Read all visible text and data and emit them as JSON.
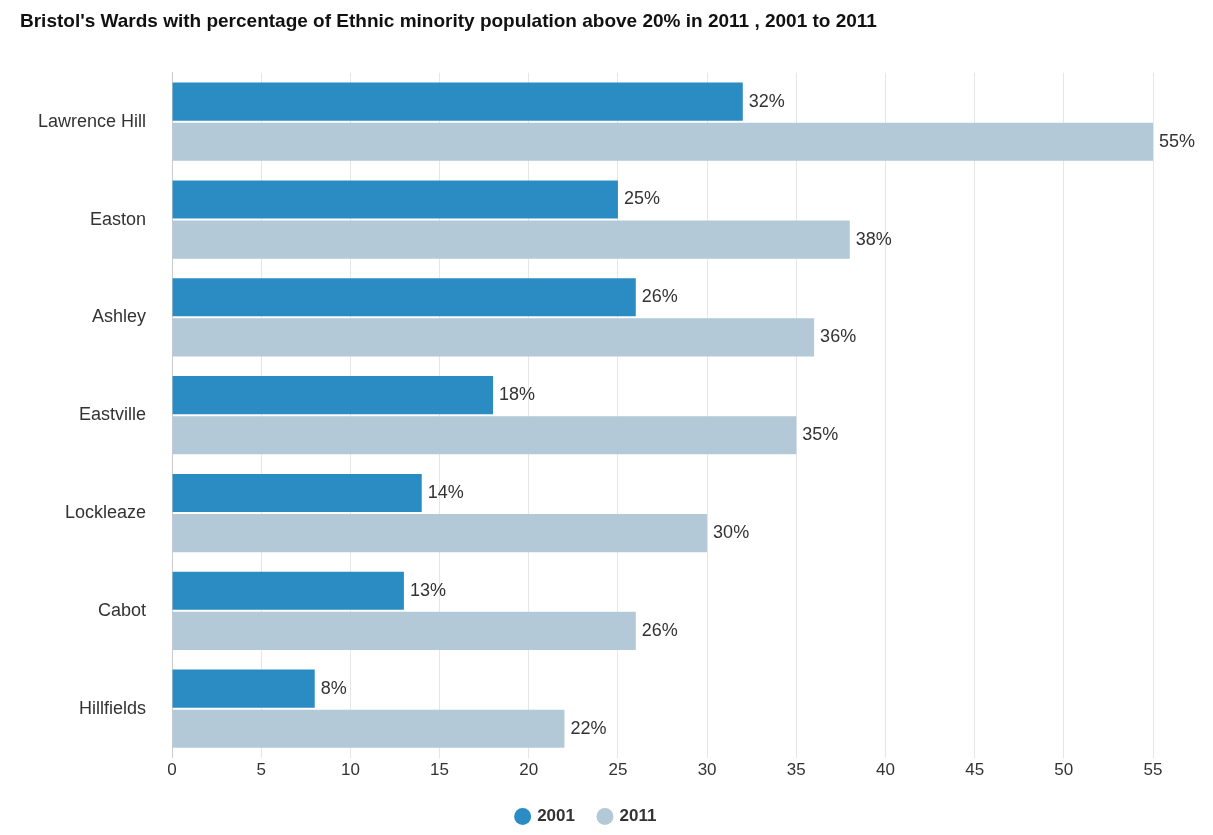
{
  "chart_data": {
    "type": "bar",
    "orientation": "horizontal",
    "title": "Bristol's Wards with percentage of Ethnic minority population above 20% in 2011 , 2001 to 2011",
    "categories": [
      "Lawrence Hill",
      "Easton",
      "Ashley",
      "Eastville",
      "Lockleaze",
      "Cabot",
      "Hillfields"
    ],
    "series": [
      {
        "name": "2001",
        "color": "#2b8cc4",
        "values": [
          32,
          25,
          26,
          18,
          14,
          13,
          8
        ],
        "value_labels": [
          "32%",
          "25%",
          "26%",
          "18%",
          "14%",
          "13%",
          "8%"
        ]
      },
      {
        "name": "2011",
        "color": "#b3c9d7",
        "values": [
          55,
          38,
          36,
          35,
          30,
          26,
          22
        ],
        "value_labels": [
          "55%",
          "38%",
          "36%",
          "35%",
          "30%",
          "26%",
          "22%"
        ]
      }
    ],
    "xlim": [
      0,
      55
    ],
    "xticks": [
      0,
      5,
      10,
      15,
      20,
      25,
      30,
      35,
      40,
      45,
      50,
      55
    ],
    "grid": "x",
    "legend": "bottom"
  }
}
